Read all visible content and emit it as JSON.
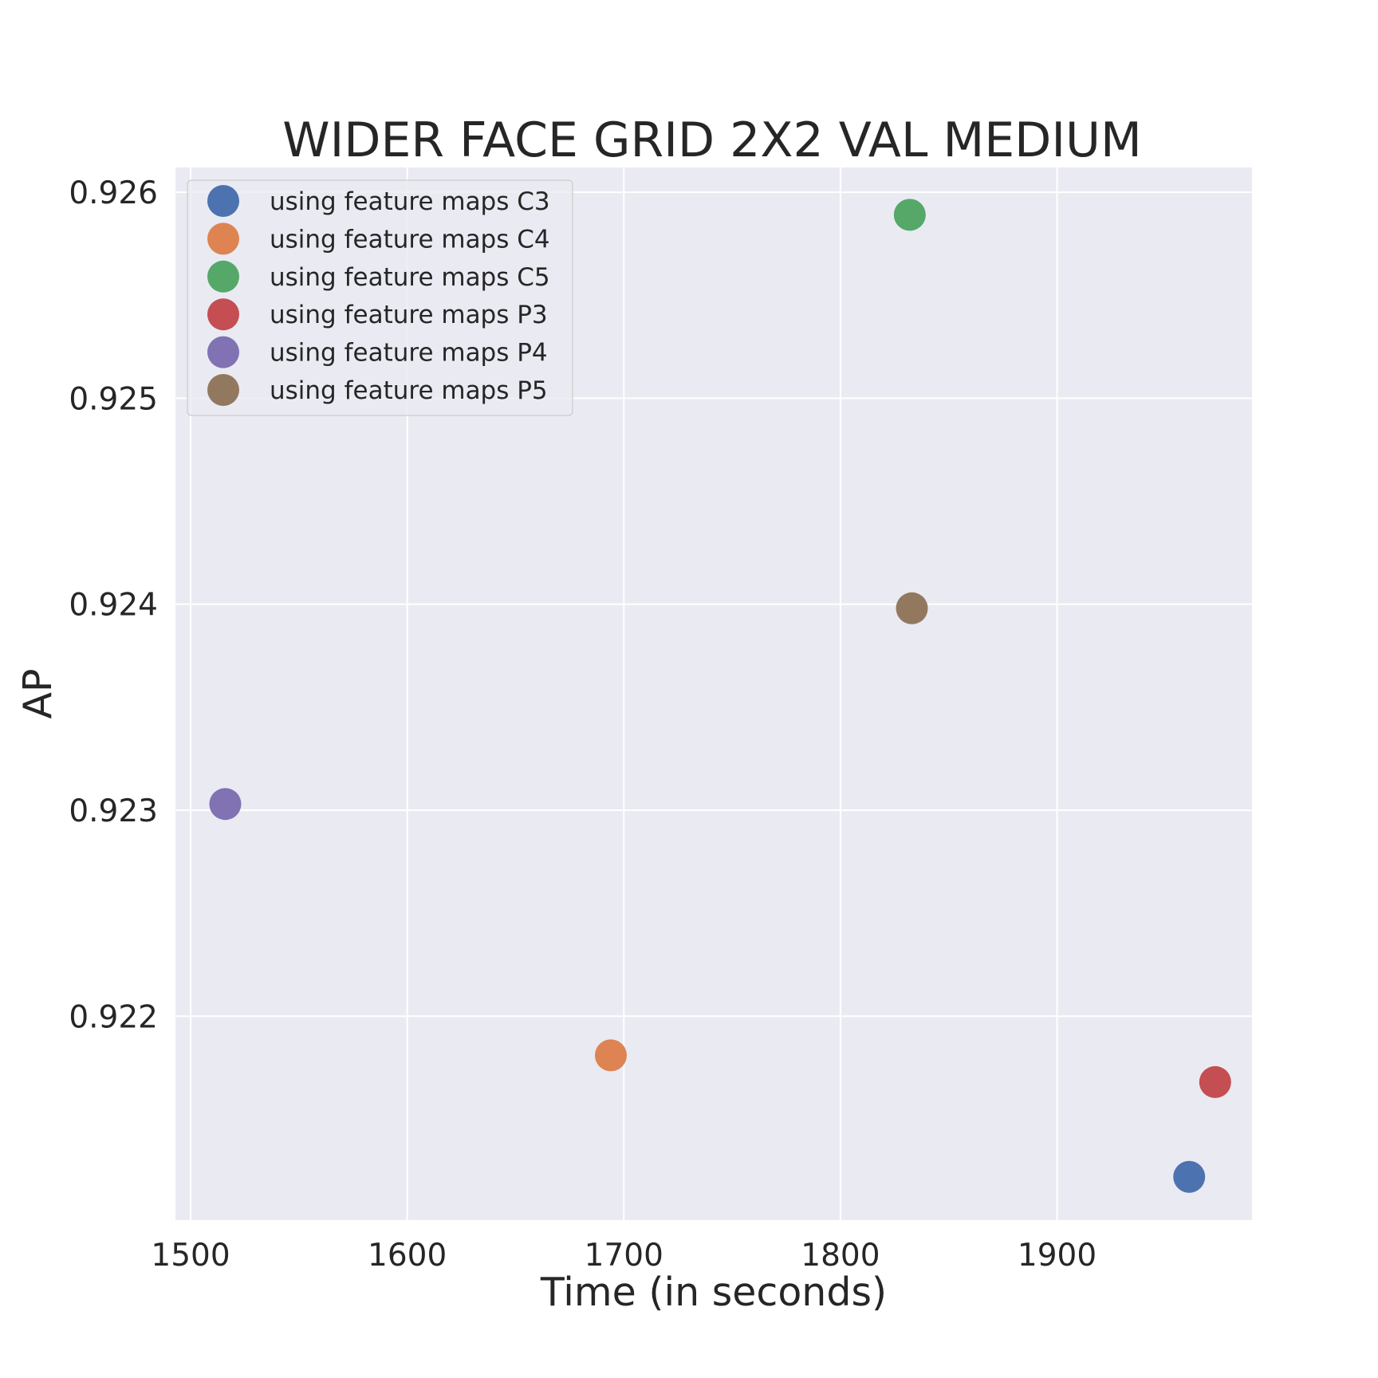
{
  "chart_data": {
    "type": "scatter",
    "title": "WIDER FACE GRID 2X2 VAL MEDIUM",
    "xlabel": "Time (in seconds)",
    "ylabel": "AP",
    "xlim": [
      1493,
      1990
    ],
    "ylim": [
      0.92101,
      0.92612
    ],
    "x_ticks": [
      1500,
      1600,
      1700,
      1800,
      1900
    ],
    "y_ticks": [
      0.922,
      0.923,
      0.924,
      0.925,
      0.926
    ],
    "x_tick_labels": [
      "1500",
      "1600",
      "1700",
      "1800",
      "1900"
    ],
    "y_tick_labels": [
      "0.922",
      "0.923",
      "0.924",
      "0.925",
      "0.926"
    ],
    "grid": true,
    "legend_position": "top-left",
    "series": [
      {
        "name": "using feature maps C3",
        "color": "#4C72B0",
        "points": [
          {
            "x": 1961,
            "y": 0.92122
          }
        ]
      },
      {
        "name": "using feature maps C4",
        "color": "#DD8452",
        "points": [
          {
            "x": 1694,
            "y": 0.92181
          }
        ]
      },
      {
        "name": "using feature maps C5",
        "color": "#55A868",
        "points": [
          {
            "x": 1832,
            "y": 0.92589
          }
        ]
      },
      {
        "name": "using feature maps P3",
        "color": "#C44E52",
        "points": [
          {
            "x": 1973,
            "y": 0.92168
          }
        ]
      },
      {
        "name": "using feature maps P4",
        "color": "#8172B3",
        "points": [
          {
            "x": 1516,
            "y": 0.92303
          }
        ]
      },
      {
        "name": "using feature maps P5",
        "color": "#937860",
        "points": [
          {
            "x": 1833,
            "y": 0.92398
          }
        ]
      }
    ]
  }
}
